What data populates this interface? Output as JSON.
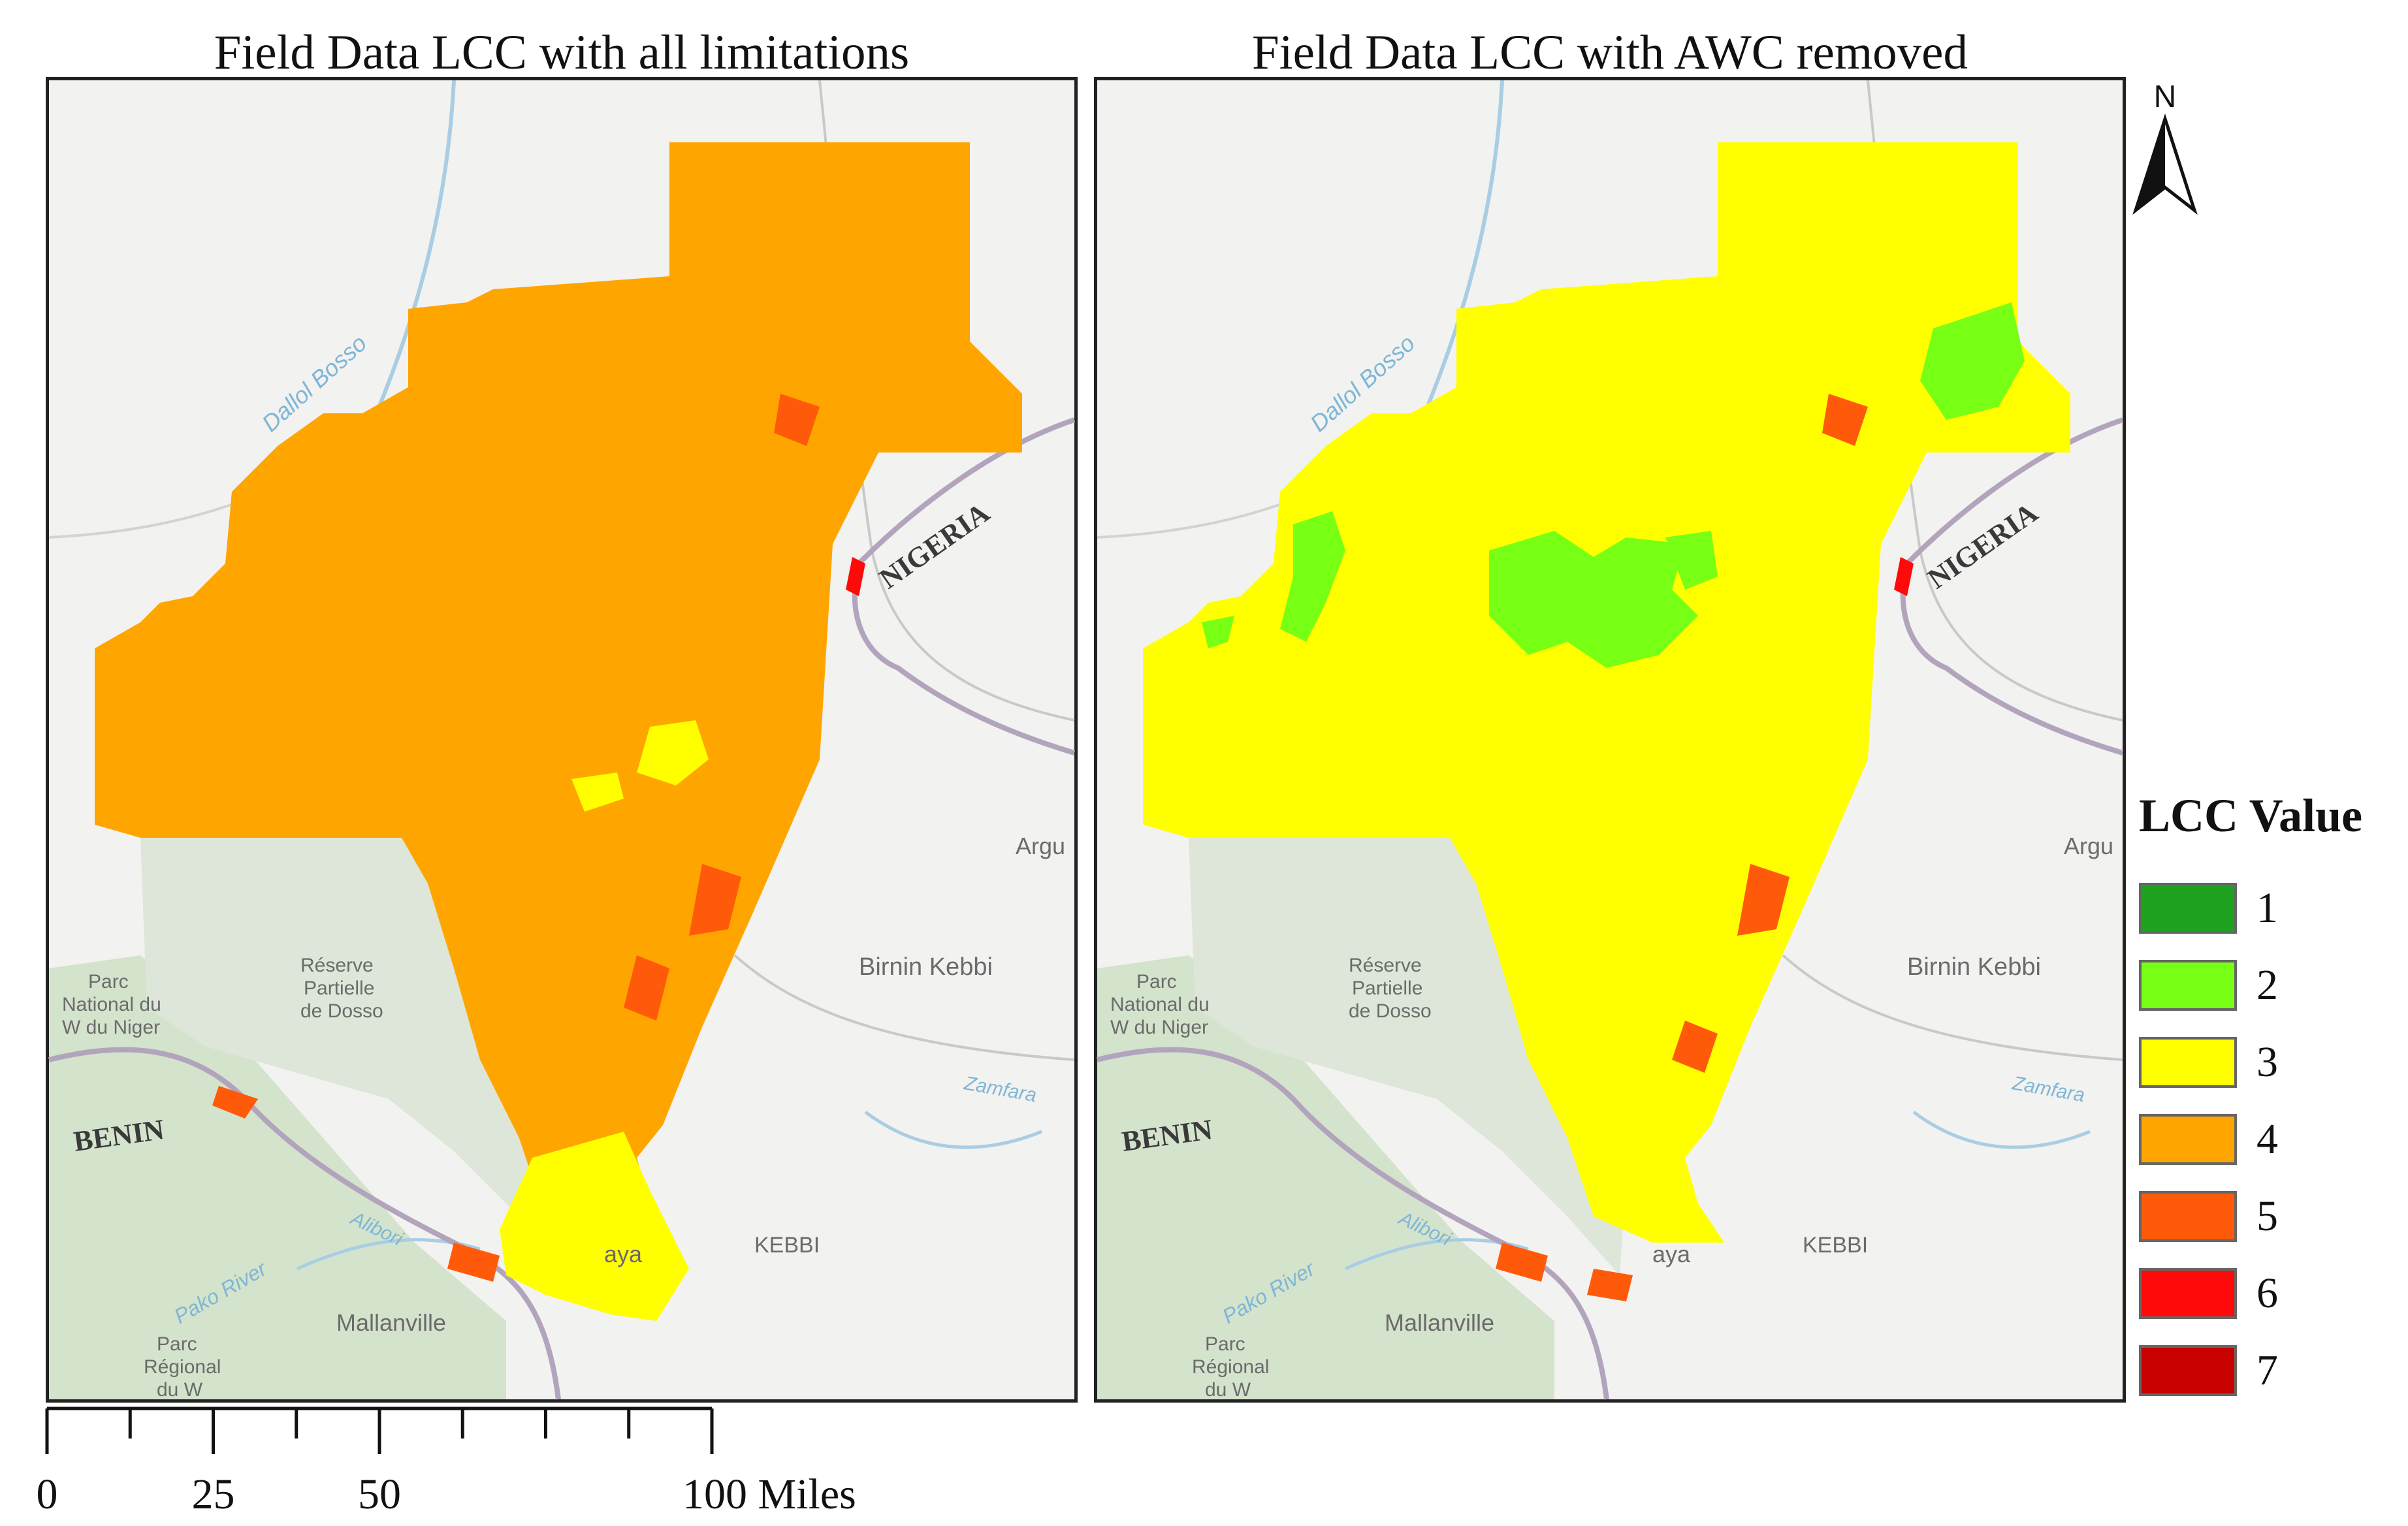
{
  "panels": [
    {
      "title": "Field Data LCC with all limitations",
      "base_class": "4"
    },
    {
      "title": "Field Data LCC with AWC removed",
      "base_class": "3"
    }
  ],
  "map_labels": {
    "country_nigeria": "NIGERIA",
    "country_benin": "BENIN",
    "river_dallol": "Dallol Bosso",
    "river_pako": "Pako River",
    "river_alibori": "Alibori",
    "river_zamfara": "Zamfara",
    "city_birnin_kebbi": "Birnin Kebbi",
    "city_mallanville": "Mallanville",
    "city_gaya": "aya",
    "city_argu": "Argu",
    "state_kebbi": "KEBBI",
    "park_w_line1": "Parc",
    "park_w_line2": "National du",
    "park_w_line3": "W du Niger",
    "reserve_line1": "Réserve",
    "reserve_line2": "Partielle",
    "reserve_line3": "de Dosso",
    "parc_reg_line1": "Parc",
    "parc_reg_line2": "Régional",
    "parc_reg_line3": "du W"
  },
  "north_arrow": {
    "label": "N"
  },
  "legend": {
    "title": "LCC Value",
    "items": [
      {
        "label": "1",
        "color": "#1fa21f"
      },
      {
        "label": "2",
        "color": "#77ff14"
      },
      {
        "label": "3",
        "color": "#ffff00"
      },
      {
        "label": "4",
        "color": "#ffa500"
      },
      {
        "label": "5",
        "color": "#ff5a0a"
      },
      {
        "label": "6",
        "color": "#ff0a0a"
      },
      {
        "label": "7",
        "color": "#c80000"
      }
    ]
  },
  "scale_bar": {
    "labels": [
      "0",
      "25",
      "50",
      "100 Miles"
    ],
    "max_value": 100
  }
}
